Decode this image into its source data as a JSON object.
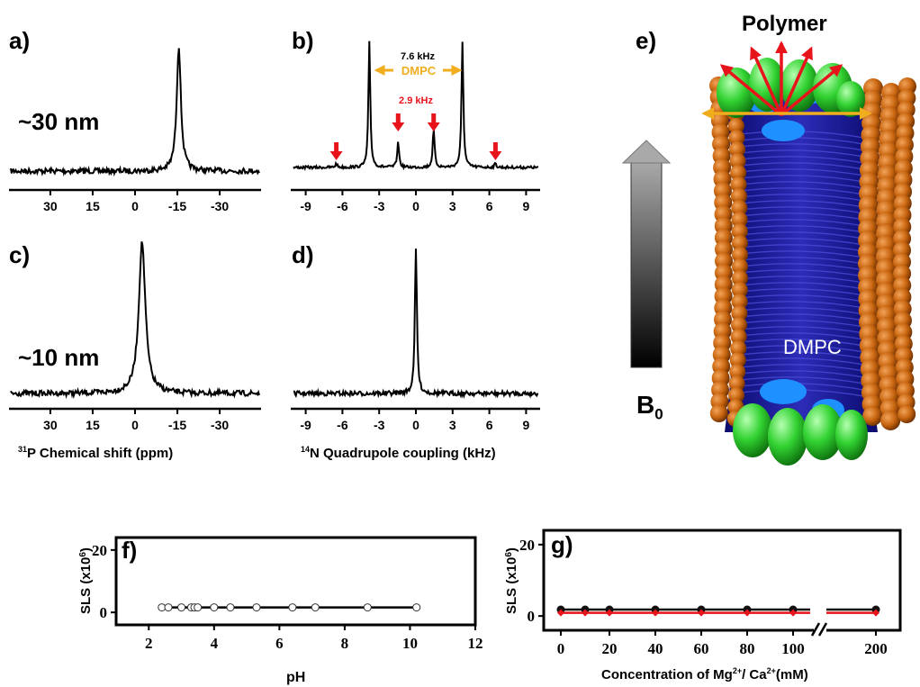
{
  "figure": {
    "panel_letters": {
      "a": "a)",
      "b": "b)",
      "c": "c)",
      "d": "d)",
      "e": "e)",
      "f": "f)",
      "g": "g)"
    },
    "size_labels": {
      "large": "~30 nm",
      "small": "~10 nm"
    }
  },
  "chart_data": [
    {
      "id": "a",
      "type": "line",
      "xlabel": "31P Chemical shift (ppm)",
      "xticks": [
        30,
        15,
        0,
        -15,
        -30
      ],
      "xlim": [
        44,
        -44
      ],
      "peaks": [
        {
          "x": -15.5,
          "height": 1.0
        }
      ]
    },
    {
      "id": "b",
      "type": "line",
      "xticks": [
        -9,
        -6,
        -3,
        0,
        3,
        6,
        9
      ],
      "xlim": [
        -10,
        10
      ],
      "peaks": [
        {
          "x": -3.8,
          "height": 1.0
        },
        {
          "x": 3.8,
          "height": 1.0
        },
        {
          "x": -1.45,
          "height": 0.2
        },
        {
          "x": 1.45,
          "height": 0.3
        },
        {
          "x": -6.5,
          "height": 0.03
        },
        {
          "x": 6.5,
          "height": 0.03
        }
      ],
      "annotations": {
        "outer_splitting": "7.6 kHz",
        "outer_label": "DMPC",
        "inner_splitting": "2.9 kHz",
        "arrow_colors": {
          "outer": "#f0ad1e",
          "inner": "#e8141c"
        },
        "marked_peaks": [
          -6.5,
          -1.45,
          1.45,
          6.5
        ]
      }
    },
    {
      "id": "c",
      "type": "line",
      "xlabel": "31P Chemical shift (ppm)",
      "xticks": [
        30,
        15,
        0,
        -15,
        -30
      ],
      "xlim": [
        44,
        -44
      ],
      "peaks": [
        {
          "x": -2.5,
          "height": 1.0
        }
      ]
    },
    {
      "id": "d",
      "type": "line",
      "xlabel": "14N Quadrupole coupling (kHz)",
      "xticks": [
        -9,
        -6,
        -3,
        0,
        3,
        6,
        9
      ],
      "xlim": [
        -10,
        10
      ],
      "peaks": [
        {
          "x": 0,
          "height": 1.0
        }
      ]
    },
    {
      "id": "f",
      "type": "scatter",
      "xlabel": "pH",
      "ylabel": "SLS (x10^6)",
      "xlim": [
        1,
        12
      ],
      "ylim": [
        -4,
        24
      ],
      "xticks": [
        2,
        4,
        6,
        8,
        10,
        12
      ],
      "yticks": [
        0,
        20
      ],
      "series": [
        {
          "marker": "open-circle",
          "x": [
            2.4,
            2.6,
            3.0,
            3.3,
            3.4,
            3.5,
            4.0,
            4.5,
            5.3,
            6.4,
            7.1,
            8.7,
            10.2
          ],
          "y": [
            1.6,
            1.6,
            1.6,
            1.6,
            1.6,
            1.6,
            1.6,
            1.6,
            1.6,
            1.6,
            1.6,
            1.6,
            1.6
          ]
        }
      ]
    },
    {
      "id": "g",
      "type": "scatter",
      "xlabel": "Concentration of Mg2+/ Ca2+(mM)",
      "ylabel": "SLS (x10^6)",
      "xticks": [
        0,
        20,
        40,
        60,
        80,
        100,
        200
      ],
      "yticks": [
        0,
        20
      ],
      "axis_break": true,
      "ylim": [
        -4,
        24
      ],
      "colors": {
        "mg": "#111111",
        "ca": "#e8141c"
      },
      "series": [
        {
          "marker": "filled-circle",
          "color": "#111111",
          "x": [
            0,
            10,
            20,
            40,
            60,
            80,
            100,
            200
          ],
          "y": [
            1.8,
            1.8,
            1.8,
            1.8,
            1.8,
            1.8,
            1.8,
            1.8
          ]
        },
        {
          "marker": "filled-diamond",
          "color": "#e8141c",
          "x": [
            0,
            10,
            20,
            40,
            60,
            80,
            100,
            200
          ],
          "y": [
            0.9,
            0.9,
            0.9,
            0.9,
            0.9,
            0.9,
            0.9,
            0.9
          ]
        }
      ]
    }
  ],
  "illustration": {
    "title": "Polymer",
    "core_label": "DMPC",
    "field_label": "B0",
    "colors": {
      "lipid_head": "#c8650f",
      "polymer": "#2fd62f",
      "core": "#1a1a9e",
      "outer_arrow": "#f0ad1e",
      "inner_arrow": "#e8141c"
    }
  }
}
